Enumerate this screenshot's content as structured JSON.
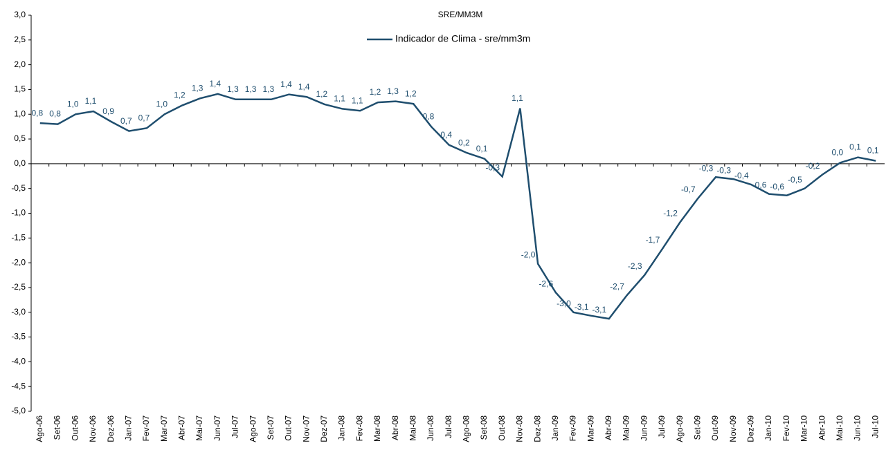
{
  "chart_data": {
    "type": "line",
    "title": "SRE/MM3M",
    "categories": [
      "Ago-06",
      "Set-06",
      "Out-06",
      "Nov-06",
      "Dez-06",
      "Jan-07",
      "Fev-07",
      "Mar-07",
      "Abr-07",
      "Mai-07",
      "Jun-07",
      "Jul-07",
      "Ago-07",
      "Set-07",
      "Out-07",
      "Nov-07",
      "Dez-07",
      "Jan-08",
      "Fev-08",
      "Mar-08",
      "Abr-08",
      "Mai-08",
      "Jun-08",
      "Jul-08",
      "Ago-08",
      "Set-08",
      "Out-08",
      "Nov-08",
      "Dez-08",
      "Jan-09",
      "Fev-09",
      "Mar-09",
      "Abr-09",
      "Mai-09",
      "Jun-09",
      "Jul-09",
      "Ago-09",
      "Set-09",
      "Out-09",
      "Nov-09",
      "Dez-09",
      "Jan-10",
      "Fev-10",
      "Mar-10",
      "Abr-10",
      "Mai-10",
      "Jun-10",
      "Jul-10"
    ],
    "series": [
      {
        "name": "Indicador de Clima - sre/mm3m",
        "color": "#1f4e6e",
        "values": [
          0.82,
          0.8,
          1.0,
          1.06,
          0.85,
          0.66,
          0.72,
          1.0,
          1.18,
          1.32,
          1.41,
          1.3,
          1.3,
          1.3,
          1.4,
          1.35,
          1.2,
          1.11,
          1.07,
          1.24,
          1.26,
          1.21,
          0.75,
          0.38,
          0.22,
          0.1,
          -0.26,
          1.12,
          -2.02,
          -2.6,
          -3.0,
          -3.07,
          -3.13,
          -2.66,
          -2.25,
          -1.72,
          -1.18,
          -0.7,
          -0.27,
          -0.31,
          -0.42,
          -0.61,
          -0.64,
          -0.5,
          -0.22,
          0.02,
          0.13,
          0.06
        ],
        "value_labels": [
          "0,8",
          "0,8",
          "1,0",
          "1,1",
          "0,9",
          "0,7",
          "0,7",
          "1,0",
          "1,2",
          "1,3",
          "1,4",
          "1,3",
          "1,3",
          "1,3",
          "1,4",
          "1,4",
          "1,2",
          "1,1",
          "1,1",
          "1,2",
          "1,3",
          "1,2",
          "0,8",
          "0,4",
          "0,2",
          "0,1",
          "-0,3",
          "1,1",
          "-2,0",
          "-2,6",
          "-3,0",
          "-3,1",
          "-3,1",
          "-2,7",
          "-2,3",
          "-1,7",
          "-1,2",
          "-0,7",
          "-0,3",
          "-0,3",
          "-0,4",
          "-0,6",
          "-0,6",
          "-0,5",
          "-0,2",
          "0,0",
          "0,1",
          "0,1"
        ]
      }
    ],
    "ylim": [
      -5,
      3
    ],
    "yticks": [
      {
        "value": -5,
        "label": "-5,0"
      },
      {
        "value": -4.5,
        "label": "-4,5"
      },
      {
        "value": -4,
        "label": "-4,0"
      },
      {
        "value": -3.5,
        "label": "-3,5"
      },
      {
        "value": -3,
        "label": "-3,0"
      },
      {
        "value": -2.5,
        "label": "-2,5"
      },
      {
        "value": -2,
        "label": "-2,0"
      },
      {
        "value": -1.5,
        "label": "-1,5"
      },
      {
        "value": -1,
        "label": "-1,0"
      },
      {
        "value": -0.5,
        "label": "-0,5"
      },
      {
        "value": 0,
        "label": "0,0"
      },
      {
        "value": 0.5,
        "label": "0,5"
      },
      {
        "value": 1,
        "label": "1,0"
      },
      {
        "value": 1.5,
        "label": "1,5"
      },
      {
        "value": 2,
        "label": "2,0"
      },
      {
        "value": 2.5,
        "label": "2,5"
      },
      {
        "value": 3,
        "label": "3,0"
      }
    ],
    "legend": "top"
  }
}
